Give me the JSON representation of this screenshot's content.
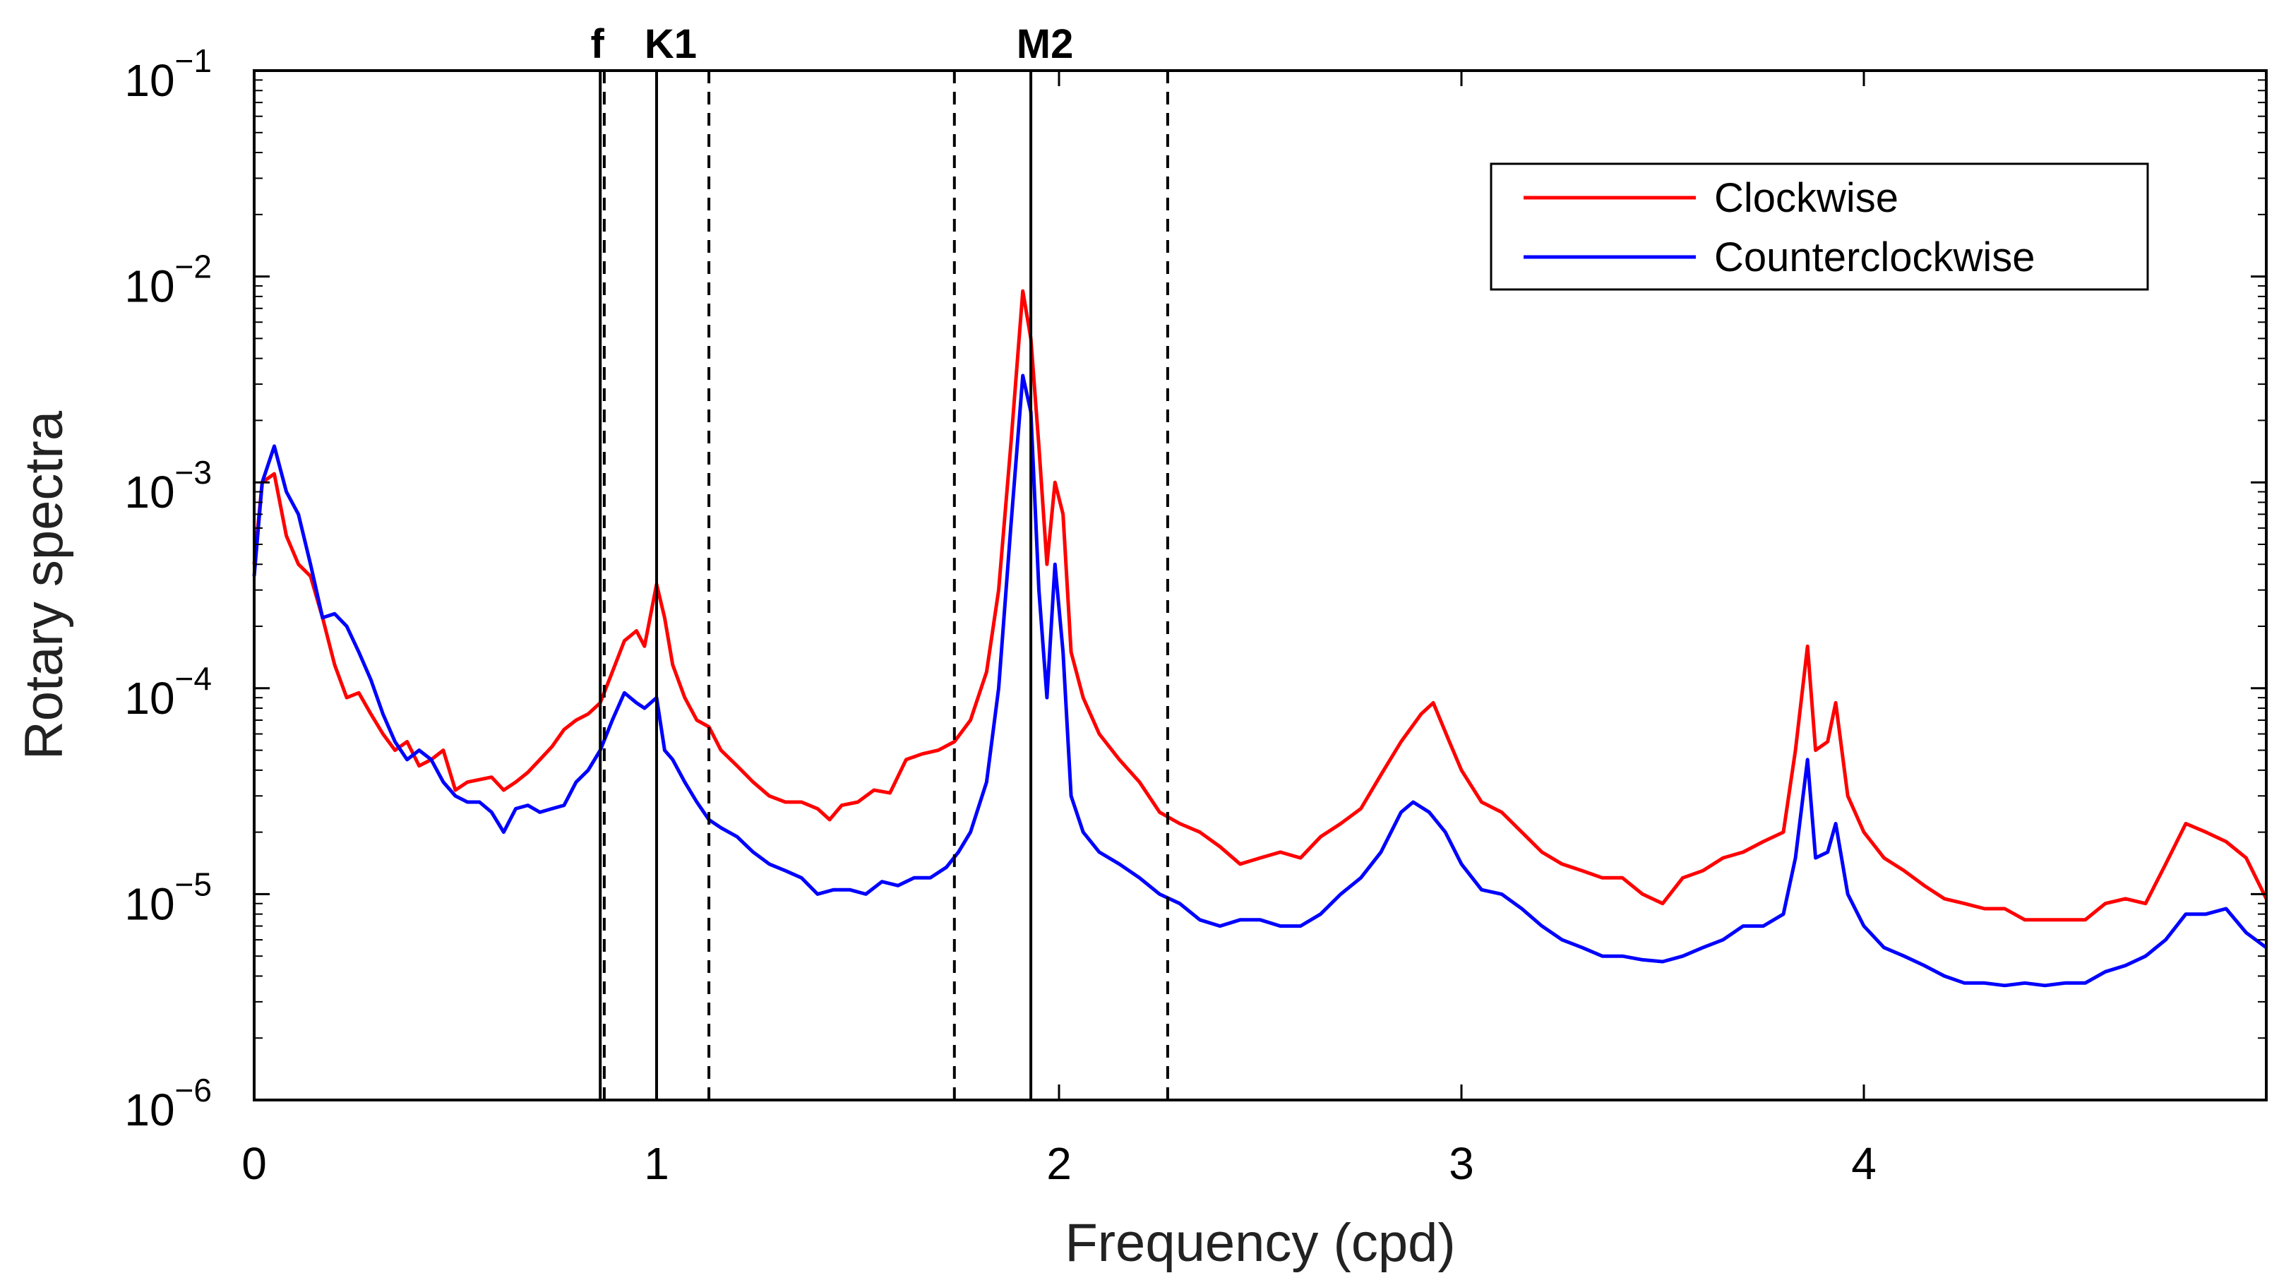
{
  "chart_data": {
    "type": "line",
    "title": "",
    "xlabel": "Frequency (cpd)",
    "ylabel": "Rotary spectra",
    "xlim": [
      0,
      5
    ],
    "ylim": [
      1e-06,
      0.1
    ],
    "yscale": "log",
    "x_ticks": [
      0,
      1,
      2,
      3,
      4
    ],
    "x_tick_labels": [
      "0",
      "1",
      "2",
      "3",
      "4"
    ],
    "y_ticks": [
      {
        "value": 0.1,
        "base": "10",
        "exp": "−1"
      },
      {
        "value": 0.01,
        "base": "10",
        "exp": "−2"
      },
      {
        "value": 0.001,
        "base": "10",
        "exp": "−3"
      },
      {
        "value": 0.0001,
        "base": "10",
        "exp": "−4"
      },
      {
        "value": 1e-05,
        "base": "10",
        "exp": "−5"
      },
      {
        "value": 1e-06,
        "base": "10",
        "exp": "−6"
      }
    ],
    "grid": false,
    "legend_position": "top-right",
    "vertical_lines": [
      {
        "x": 0.86,
        "style": "solid",
        "label": "f"
      },
      {
        "x": 0.87,
        "style": "dashed",
        "label": ""
      },
      {
        "x": 1.0,
        "style": "solid",
        "label": "K1"
      },
      {
        "x": 1.13,
        "style": "dashed",
        "label": ""
      },
      {
        "x": 1.74,
        "style": "dashed",
        "label": ""
      },
      {
        "x": 1.93,
        "style": "solid",
        "label": "M2"
      },
      {
        "x": 2.27,
        "style": "dashed",
        "label": ""
      }
    ],
    "series": [
      {
        "name": "Clockwise",
        "color": "#ff0000",
        "points": [
          [
            0.0,
            0.0004
          ],
          [
            0.02,
            0.001
          ],
          [
            0.05,
            0.0011
          ],
          [
            0.08,
            0.00055
          ],
          [
            0.11,
            0.0004
          ],
          [
            0.14,
            0.00035
          ],
          [
            0.17,
            0.00022
          ],
          [
            0.2,
            0.00013
          ],
          [
            0.23,
            9e-05
          ],
          [
            0.26,
            9.5e-05
          ],
          [
            0.29,
            7.5e-05
          ],
          [
            0.32,
            6e-05
          ],
          [
            0.35,
            5e-05
          ],
          [
            0.38,
            5.5e-05
          ],
          [
            0.41,
            4.2e-05
          ],
          [
            0.44,
            4.5e-05
          ],
          [
            0.47,
            5e-05
          ],
          [
            0.5,
            3.2e-05
          ],
          [
            0.53,
            3.5e-05
          ],
          [
            0.56,
            3.6e-05
          ],
          [
            0.59,
            3.7e-05
          ],
          [
            0.62,
            3.2e-05
          ],
          [
            0.65,
            3.5e-05
          ],
          [
            0.68,
            3.9e-05
          ],
          [
            0.71,
            4.5e-05
          ],
          [
            0.74,
            5.2e-05
          ],
          [
            0.77,
            6.3e-05
          ],
          [
            0.8,
            7e-05
          ],
          [
            0.83,
            7.5e-05
          ],
          [
            0.86,
            8.5e-05
          ],
          [
            0.89,
            0.00012
          ],
          [
            0.92,
            0.00017
          ],
          [
            0.95,
            0.00019
          ],
          [
            0.97,
            0.00016
          ],
          [
            1.0,
            0.00032
          ],
          [
            1.02,
            0.00022
          ],
          [
            1.04,
            0.00013
          ],
          [
            1.07,
            9e-05
          ],
          [
            1.1,
            7e-05
          ],
          [
            1.13,
            6.5e-05
          ],
          [
            1.16,
            5e-05
          ],
          [
            1.2,
            4.2e-05
          ],
          [
            1.24,
            3.5e-05
          ],
          [
            1.28,
            3e-05
          ],
          [
            1.32,
            2.8e-05
          ],
          [
            1.36,
            2.8e-05
          ],
          [
            1.4,
            2.6e-05
          ],
          [
            1.43,
            2.3e-05
          ],
          [
            1.46,
            2.7e-05
          ],
          [
            1.5,
            2.8e-05
          ],
          [
            1.54,
            3.2e-05
          ],
          [
            1.58,
            3.1e-05
          ],
          [
            1.62,
            4.5e-05
          ],
          [
            1.66,
            4.8e-05
          ],
          [
            1.7,
            5e-05
          ],
          [
            1.74,
            5.5e-05
          ],
          [
            1.78,
            7e-05
          ],
          [
            1.82,
            0.00012
          ],
          [
            1.85,
            0.0003
          ],
          [
            1.88,
            0.0015
          ],
          [
            1.91,
            0.0085
          ],
          [
            1.93,
            0.005
          ],
          [
            1.95,
            0.0015
          ],
          [
            1.97,
            0.0004
          ],
          [
            1.99,
            0.001
          ],
          [
            2.01,
            0.0007
          ],
          [
            2.03,
            0.00015
          ],
          [
            2.06,
            9e-05
          ],
          [
            2.1,
            6e-05
          ],
          [
            2.15,
            4.5e-05
          ],
          [
            2.2,
            3.5e-05
          ],
          [
            2.25,
            2.5e-05
          ],
          [
            2.3,
            2.2e-05
          ],
          [
            2.35,
            2e-05
          ],
          [
            2.4,
            1.7e-05
          ],
          [
            2.45,
            1.4e-05
          ],
          [
            2.5,
            1.5e-05
          ],
          [
            2.55,
            1.6e-05
          ],
          [
            2.6,
            1.5e-05
          ],
          [
            2.65,
            1.9e-05
          ],
          [
            2.7,
            2.2e-05
          ],
          [
            2.75,
            2.6e-05
          ],
          [
            2.8,
            3.8e-05
          ],
          [
            2.85,
            5.5e-05
          ],
          [
            2.9,
            7.5e-05
          ],
          [
            2.93,
            8.5e-05
          ],
          [
            2.97,
            5.5e-05
          ],
          [
            3.0,
            4e-05
          ],
          [
            3.05,
            2.8e-05
          ],
          [
            3.1,
            2.5e-05
          ],
          [
            3.15,
            2e-05
          ],
          [
            3.2,
            1.6e-05
          ],
          [
            3.25,
            1.4e-05
          ],
          [
            3.3,
            1.3e-05
          ],
          [
            3.35,
            1.2e-05
          ],
          [
            3.4,
            1.2e-05
          ],
          [
            3.45,
            1e-05
          ],
          [
            3.5,
            9e-06
          ],
          [
            3.55,
            1.2e-05
          ],
          [
            3.6,
            1.3e-05
          ],
          [
            3.65,
            1.5e-05
          ],
          [
            3.7,
            1.6e-05
          ],
          [
            3.75,
            1.8e-05
          ],
          [
            3.8,
            2e-05
          ],
          [
            3.83,
            5e-05
          ],
          [
            3.86,
            0.00016
          ],
          [
            3.88,
            5e-05
          ],
          [
            3.91,
            5.5e-05
          ],
          [
            3.93,
            8.5e-05
          ],
          [
            3.96,
            3e-05
          ],
          [
            4.0,
            2e-05
          ],
          [
            4.05,
            1.5e-05
          ],
          [
            4.1,
            1.3e-05
          ],
          [
            4.15,
            1.1e-05
          ],
          [
            4.2,
            9.5e-06
          ],
          [
            4.25,
            9e-06
          ],
          [
            4.3,
            8.5e-06
          ],
          [
            4.35,
            8.5e-06
          ],
          [
            4.4,
            7.5e-06
          ],
          [
            4.45,
            7.5e-06
          ],
          [
            4.5,
            7.5e-06
          ],
          [
            4.55,
            7.5e-06
          ],
          [
            4.6,
            9e-06
          ],
          [
            4.65,
            9.5e-06
          ],
          [
            4.7,
            9e-06
          ],
          [
            4.75,
            1.4e-05
          ],
          [
            4.8,
            2.2e-05
          ],
          [
            4.85,
            2e-05
          ],
          [
            4.9,
            1.8e-05
          ],
          [
            4.95,
            1.5e-05
          ],
          [
            5.0,
            9.5e-06
          ]
        ]
      },
      {
        "name": "Counterclockwise",
        "color": "#0000ff",
        "points": [
          [
            0.0,
            0.00035
          ],
          [
            0.02,
            0.001
          ],
          [
            0.05,
            0.0015
          ],
          [
            0.08,
            0.0009
          ],
          [
            0.11,
            0.0007
          ],
          [
            0.14,
            0.0004
          ],
          [
            0.17,
            0.00022
          ],
          [
            0.2,
            0.00023
          ],
          [
            0.23,
            0.0002
          ],
          [
            0.26,
            0.00015
          ],
          [
            0.29,
            0.00011
          ],
          [
            0.32,
            7.5e-05
          ],
          [
            0.35,
            5.5e-05
          ],
          [
            0.38,
            4.5e-05
          ],
          [
            0.41,
            5e-05
          ],
          [
            0.44,
            4.5e-05
          ],
          [
            0.47,
            3.5e-05
          ],
          [
            0.5,
            3e-05
          ],
          [
            0.53,
            2.8e-05
          ],
          [
            0.56,
            2.8e-05
          ],
          [
            0.59,
            2.5e-05
          ],
          [
            0.62,
            2e-05
          ],
          [
            0.65,
            2.6e-05
          ],
          [
            0.68,
            2.7e-05
          ],
          [
            0.71,
            2.5e-05
          ],
          [
            0.74,
            2.6e-05
          ],
          [
            0.77,
            2.7e-05
          ],
          [
            0.8,
            3.5e-05
          ],
          [
            0.83,
            4e-05
          ],
          [
            0.86,
            5e-05
          ],
          [
            0.89,
            7e-05
          ],
          [
            0.92,
            9.5e-05
          ],
          [
            0.95,
            8.5e-05
          ],
          [
            0.97,
            8e-05
          ],
          [
            1.0,
            9e-05
          ],
          [
            1.02,
            5e-05
          ],
          [
            1.04,
            4.5e-05
          ],
          [
            1.07,
            3.5e-05
          ],
          [
            1.1,
            2.8e-05
          ],
          [
            1.13,
            2.3e-05
          ],
          [
            1.16,
            2.1e-05
          ],
          [
            1.2,
            1.9e-05
          ],
          [
            1.24,
            1.6e-05
          ],
          [
            1.28,
            1.4e-05
          ],
          [
            1.32,
            1.3e-05
          ],
          [
            1.36,
            1.2e-05
          ],
          [
            1.4,
            1e-05
          ],
          [
            1.44,
            1.05e-05
          ],
          [
            1.48,
            1.05e-05
          ],
          [
            1.52,
            1e-05
          ],
          [
            1.56,
            1.15e-05
          ],
          [
            1.6,
            1.1e-05
          ],
          [
            1.64,
            1.2e-05
          ],
          [
            1.68,
            1.2e-05
          ],
          [
            1.72,
            1.35e-05
          ],
          [
            1.75,
            1.6e-05
          ],
          [
            1.78,
            2e-05
          ],
          [
            1.82,
            3.5e-05
          ],
          [
            1.85,
            0.0001
          ],
          [
            1.88,
            0.0006
          ],
          [
            1.91,
            0.0033
          ],
          [
            1.93,
            0.0022
          ],
          [
            1.95,
            0.0003
          ],
          [
            1.97,
            9e-05
          ],
          [
            1.99,
            0.0004
          ],
          [
            2.01,
            0.00015
          ],
          [
            2.03,
            3e-05
          ],
          [
            2.06,
            2e-05
          ],
          [
            2.1,
            1.6e-05
          ],
          [
            2.15,
            1.4e-05
          ],
          [
            2.2,
            1.2e-05
          ],
          [
            2.25,
            1e-05
          ],
          [
            2.3,
            9e-06
          ],
          [
            2.35,
            7.5e-06
          ],
          [
            2.4,
            7e-06
          ],
          [
            2.45,
            7.5e-06
          ],
          [
            2.5,
            7.5e-06
          ],
          [
            2.55,
            7e-06
          ],
          [
            2.6,
            7e-06
          ],
          [
            2.65,
            8e-06
          ],
          [
            2.7,
            1e-05
          ],
          [
            2.75,
            1.2e-05
          ],
          [
            2.8,
            1.6e-05
          ],
          [
            2.85,
            2.5e-05
          ],
          [
            2.88,
            2.8e-05
          ],
          [
            2.92,
            2.5e-05
          ],
          [
            2.96,
            2e-05
          ],
          [
            3.0,
            1.4e-05
          ],
          [
            3.05,
            1.05e-05
          ],
          [
            3.1,
            1e-05
          ],
          [
            3.15,
            8.5e-06
          ],
          [
            3.2,
            7e-06
          ],
          [
            3.25,
            6e-06
          ],
          [
            3.3,
            5.5e-06
          ],
          [
            3.35,
            5e-06
          ],
          [
            3.4,
            5e-06
          ],
          [
            3.45,
            4.8e-06
          ],
          [
            3.5,
            4.7e-06
          ],
          [
            3.55,
            5e-06
          ],
          [
            3.6,
            5.5e-06
          ],
          [
            3.65,
            6e-06
          ],
          [
            3.7,
            7e-06
          ],
          [
            3.75,
            7e-06
          ],
          [
            3.8,
            8e-06
          ],
          [
            3.83,
            1.5e-05
          ],
          [
            3.86,
            4.5e-05
          ],
          [
            3.88,
            1.5e-05
          ],
          [
            3.91,
            1.6e-05
          ],
          [
            3.93,
            2.2e-05
          ],
          [
            3.96,
            1e-05
          ],
          [
            4.0,
            7e-06
          ],
          [
            4.05,
            5.5e-06
          ],
          [
            4.1,
            5e-06
          ],
          [
            4.15,
            4.5e-06
          ],
          [
            4.2,
            4e-06
          ],
          [
            4.25,
            3.7e-06
          ],
          [
            4.3,
            3.7e-06
          ],
          [
            4.35,
            3.6e-06
          ],
          [
            4.4,
            3.7e-06
          ],
          [
            4.45,
            3.6e-06
          ],
          [
            4.5,
            3.7e-06
          ],
          [
            4.55,
            3.7e-06
          ],
          [
            4.6,
            4.2e-06
          ],
          [
            4.65,
            4.5e-06
          ],
          [
            4.7,
            5e-06
          ],
          [
            4.75,
            6e-06
          ],
          [
            4.8,
            8e-06
          ],
          [
            4.85,
            8e-06
          ],
          [
            4.9,
            8.5e-06
          ],
          [
            4.95,
            6.5e-06
          ],
          [
            5.0,
            5.5e-06
          ]
        ]
      }
    ]
  }
}
